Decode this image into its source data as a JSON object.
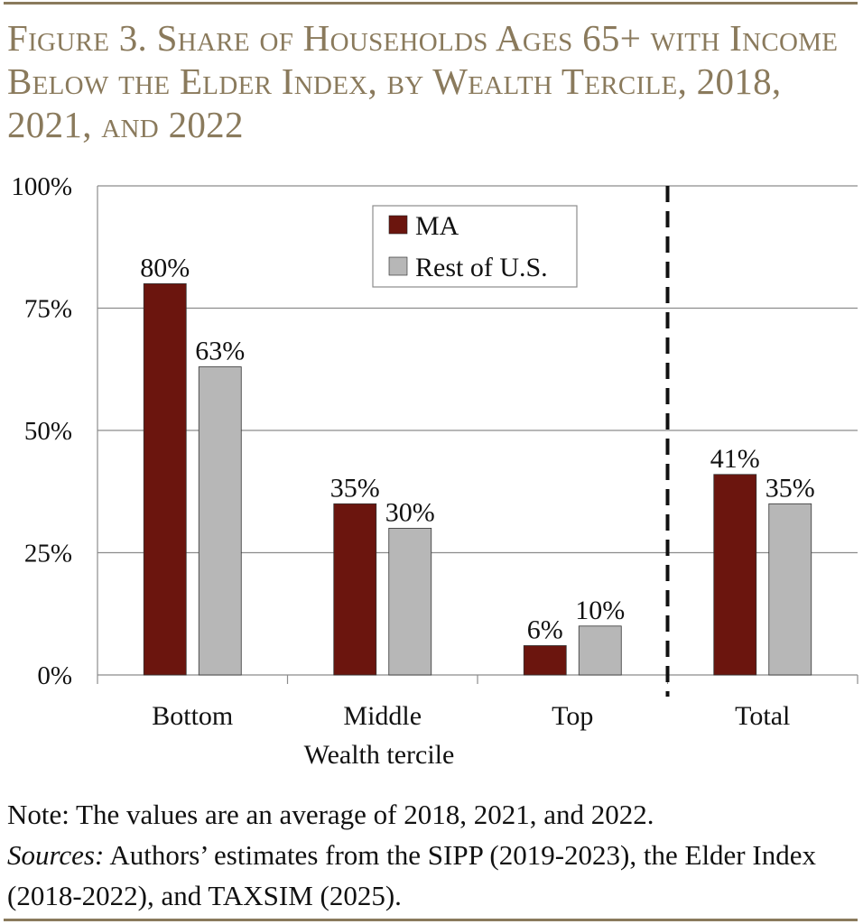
{
  "theme": {
    "accent": "#8a7a5c",
    "ma_color": "#6b150e",
    "rest_color": "#b7b7b7",
    "grid_color": "#8c8c8c"
  },
  "title": "Figure 3. Share of Households Ages 65+ with Income Below the Elder Index, by Wealth Tercile, 2018, 2021, and 2022",
  "notes": {
    "note": "Note: The values are an average of 2018, 2021, and 2022.",
    "sources_label": "Sources:",
    "sources_text": " Authors’ estimates from the SIPP (2019-2023), the Elder Index (2018-2022), and TAXSIM (2025)."
  },
  "chart_data": {
    "type": "bar",
    "title": "",
    "xlabel": "Wealth tercile",
    "ylabel": "",
    "ylim": [
      0,
      100
    ],
    "y_ticks": [
      "0%",
      "25%",
      "50%",
      "75%",
      "100%"
    ],
    "y_tick_values": [
      0,
      25,
      50,
      75,
      100
    ],
    "categories": [
      "Bottom",
      "Middle",
      "Top",
      "Total"
    ],
    "series": [
      {
        "name": "MA",
        "values": [
          80,
          35,
          6,
          41
        ],
        "labels": [
          "80%",
          "35%",
          "6%",
          "41%"
        ]
      },
      {
        "name": "Rest of U.S.",
        "values": [
          63,
          30,
          10,
          35
        ],
        "labels": [
          "63%",
          "30%",
          "10%",
          "35%"
        ]
      }
    ],
    "grid": true,
    "legend": "top-center",
    "separator": "dashed vertical line between Top and Total"
  }
}
